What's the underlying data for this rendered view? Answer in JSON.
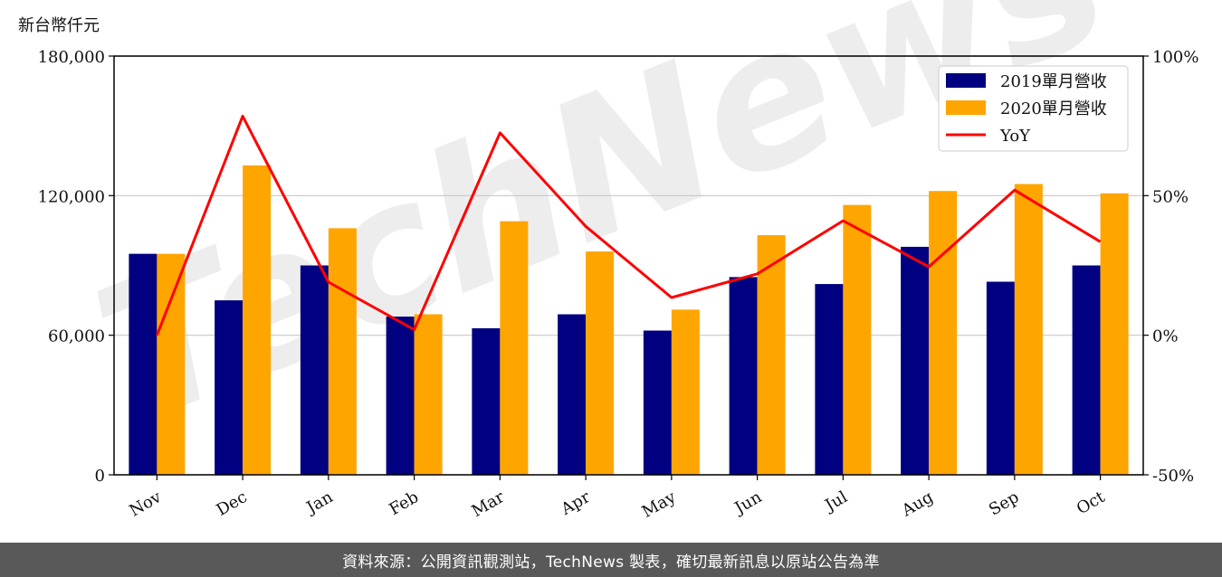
{
  "chart_data": {
    "type": "bar",
    "categories": [
      "Nov",
      "Dec",
      "Jan",
      "Feb",
      "Mar",
      "Apr",
      "May",
      "Jun",
      "Jul",
      "Aug",
      "Sep",
      "Oct"
    ],
    "series": [
      {
        "name": "2019單月營收",
        "kind": "bar",
        "color": "#000080",
        "values": [
          95000,
          75000,
          90000,
          68000,
          63000,
          69000,
          62000,
          85000,
          82000,
          98000,
          83000,
          90000
        ]
      },
      {
        "name": "2020單月營收",
        "kind": "bar",
        "color": "#FFA500",
        "values": [
          95000,
          133000,
          106000,
          69000,
          109000,
          96000,
          71000,
          103000,
          116000,
          122000,
          125000,
          121000
        ]
      },
      {
        "name": "YoY",
        "kind": "line",
        "axis": "right",
        "color": "#FF0000",
        "values": [
          0,
          78.5,
          19,
          2,
          72.5,
          39,
          13.5,
          22,
          41,
          24.5,
          52,
          33.5
        ]
      }
    ],
    "y_unit_label": "新台幣仟元",
    "ylim": [
      0,
      180000
    ],
    "yticks": [
      0,
      60000,
      120000,
      180000
    ],
    "ytick_labels": [
      "0",
      "60,000",
      "120,000",
      "180,000"
    ],
    "y2lim": [
      -50,
      100
    ],
    "y2ticks": [
      -50,
      0,
      50,
      100
    ],
    "y2tick_labels": [
      "-50%",
      "0%",
      "50%",
      "100%"
    ],
    "grid": true,
    "legend": "top-right"
  },
  "watermark": "TechNews",
  "footer": "資料來源：公開資訊觀測站，TechNews 製表，確切最新訊息以原站公告為準"
}
